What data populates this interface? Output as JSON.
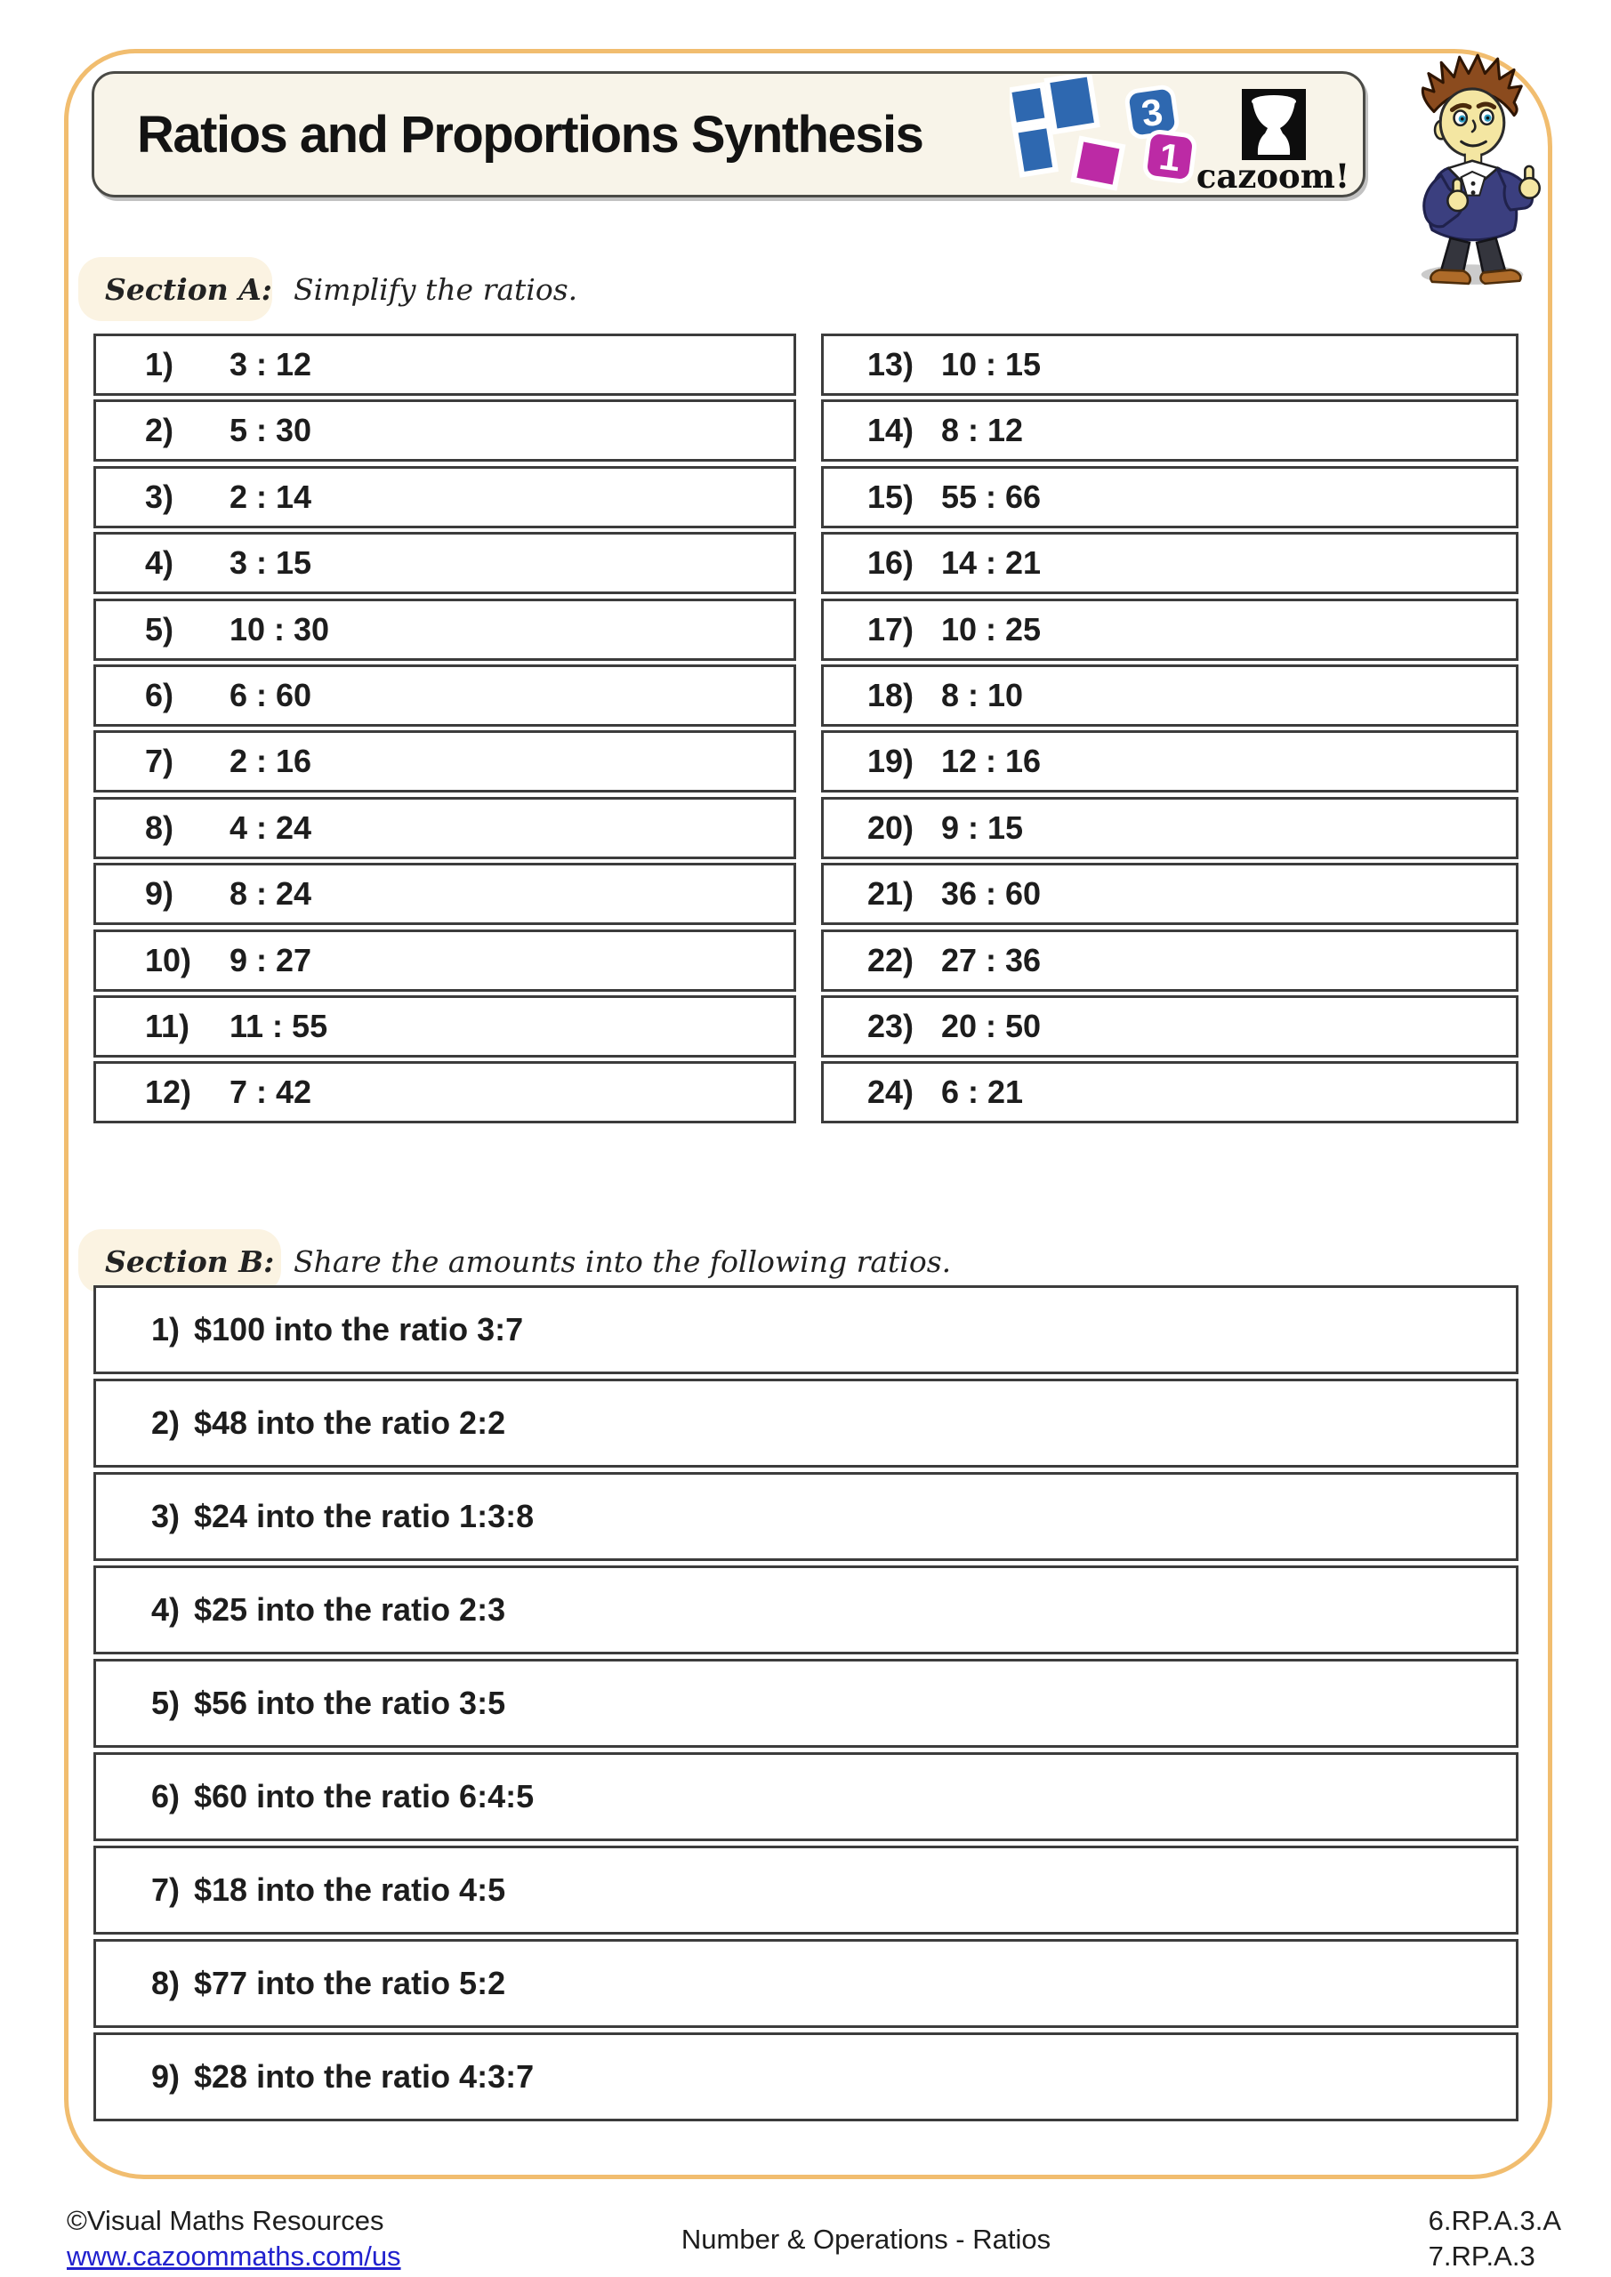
{
  "title": "Ratios and Proportions Synthesis",
  "logo": {
    "tile_top": "3",
    "tile_bottom": "1",
    "brand": "cazoom!"
  },
  "section_a": {
    "label": "Section A:",
    "instruction": "Simplify the ratios.",
    "left_items": [
      {
        "num": "1)",
        "ratio": "3 : 12"
      },
      {
        "num": "2)",
        "ratio": "5 : 30"
      },
      {
        "num": "3)",
        "ratio": "2 : 14"
      },
      {
        "num": "4)",
        "ratio": "3 : 15"
      },
      {
        "num": "5)",
        "ratio": "10 : 30"
      },
      {
        "num": "6)",
        "ratio": "6 : 60"
      },
      {
        "num": "7)",
        "ratio": "2 : 16"
      },
      {
        "num": "8)",
        "ratio": "4 : 24"
      },
      {
        "num": "9)",
        "ratio": "8 : 24"
      },
      {
        "num": "10)",
        "ratio": "9 : 27"
      },
      {
        "num": "11)",
        "ratio": "11 : 55"
      },
      {
        "num": "12)",
        "ratio": "7 : 42"
      }
    ],
    "right_items": [
      {
        "num": "13)",
        "ratio": "10 : 15"
      },
      {
        "num": "14)",
        "ratio": "8 : 12"
      },
      {
        "num": "15)",
        "ratio": "55 : 66"
      },
      {
        "num": "16)",
        "ratio": "14 : 21"
      },
      {
        "num": "17)",
        "ratio": "10 : 25"
      },
      {
        "num": "18)",
        "ratio": "8 : 10"
      },
      {
        "num": "19)",
        "ratio": "12 : 16"
      },
      {
        "num": "20)",
        "ratio": "9 : 15"
      },
      {
        "num": "21)",
        "ratio": "36 : 60"
      },
      {
        "num": "22)",
        "ratio": "27 : 36"
      },
      {
        "num": "23)",
        "ratio": "20 : 50"
      },
      {
        "num": "24)",
        "ratio": "6 : 21"
      }
    ]
  },
  "section_b": {
    "label": "Section B:",
    "instruction": "Share the amounts into the following ratios.",
    "items": [
      {
        "num": "1)",
        "text": "$100 into the ratio 3:7"
      },
      {
        "num": "2)",
        "text": "$48 into the ratio 2:2"
      },
      {
        "num": "3)",
        "text": "$24 into the ratio 1:3:8"
      },
      {
        "num": "4)",
        "text": "$25 into the ratio 2:3"
      },
      {
        "num": "5)",
        "text": "$56 into the ratio 3:5"
      },
      {
        "num": "6)",
        "text": "$60 into the ratio 6:4:5"
      },
      {
        "num": "7)",
        "text": "$18 into the ratio 4:5"
      },
      {
        "num": "8)",
        "text": "$77 into the ratio 5:2"
      },
      {
        "num": "9)",
        "text": "$28 into the ratio 4:3:7"
      }
    ]
  },
  "footer": {
    "copyright": "©Visual Maths Resources",
    "url": "www.cazoommaths.com/us",
    "center": "Number & Operations - Ratios",
    "standards": [
      "6.RP.A.3.A",
      "7.RP.A.3"
    ]
  },
  "colors": {
    "accent_border": "#F1BD6F",
    "logo_blue": "#2E68B0",
    "logo_magenta": "#BC2AA5",
    "link_blue": "#2121CE",
    "title_box_bg": "#F8F4E9",
    "pill_bg": "#FBF3E2"
  }
}
